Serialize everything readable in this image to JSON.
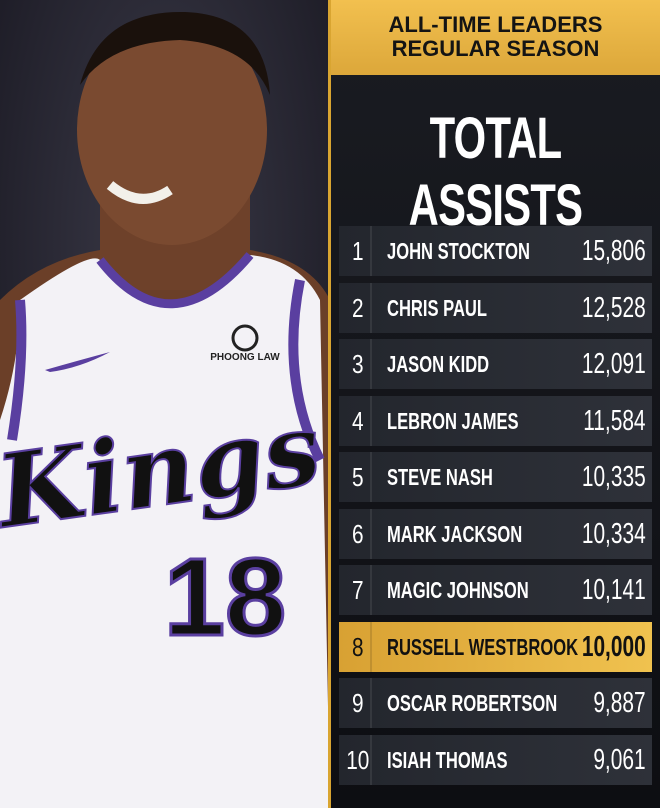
{
  "header": {
    "line1": "ALL-TIME LEADERS",
    "line2": "REGULAR SEASON"
  },
  "title": "TOTAL ASSISTS",
  "jersey": {
    "wordmark": "Kings",
    "number": "18",
    "sponsor": "PHOONG LAW"
  },
  "table": {
    "rows": [
      {
        "rank": 1,
        "name": "JOHN STOCKTON",
        "value": "15,806"
      },
      {
        "rank": 2,
        "name": "CHRIS PAUL",
        "value": "12,528"
      },
      {
        "rank": 3,
        "name": "JASON KIDD",
        "value": "12,091"
      },
      {
        "rank": 4,
        "name": "LEBRON JAMES",
        "value": "11,584"
      },
      {
        "rank": 5,
        "name": "STEVE NASH",
        "value": "10,335"
      },
      {
        "rank": 6,
        "name": "MARK JACKSON",
        "value": "10,334"
      },
      {
        "rank": 7,
        "name": "MAGIC JOHNSON",
        "value": "10,141"
      },
      {
        "rank": 8,
        "name": "RUSSELL WESTBROOK",
        "value": "10,000",
        "highlight": true
      },
      {
        "rank": 9,
        "name": "OSCAR ROBERTSON",
        "value": "9,887"
      },
      {
        "rank": 10,
        "name": "ISIAH THOMAS",
        "value": "9,061"
      }
    ]
  }
}
